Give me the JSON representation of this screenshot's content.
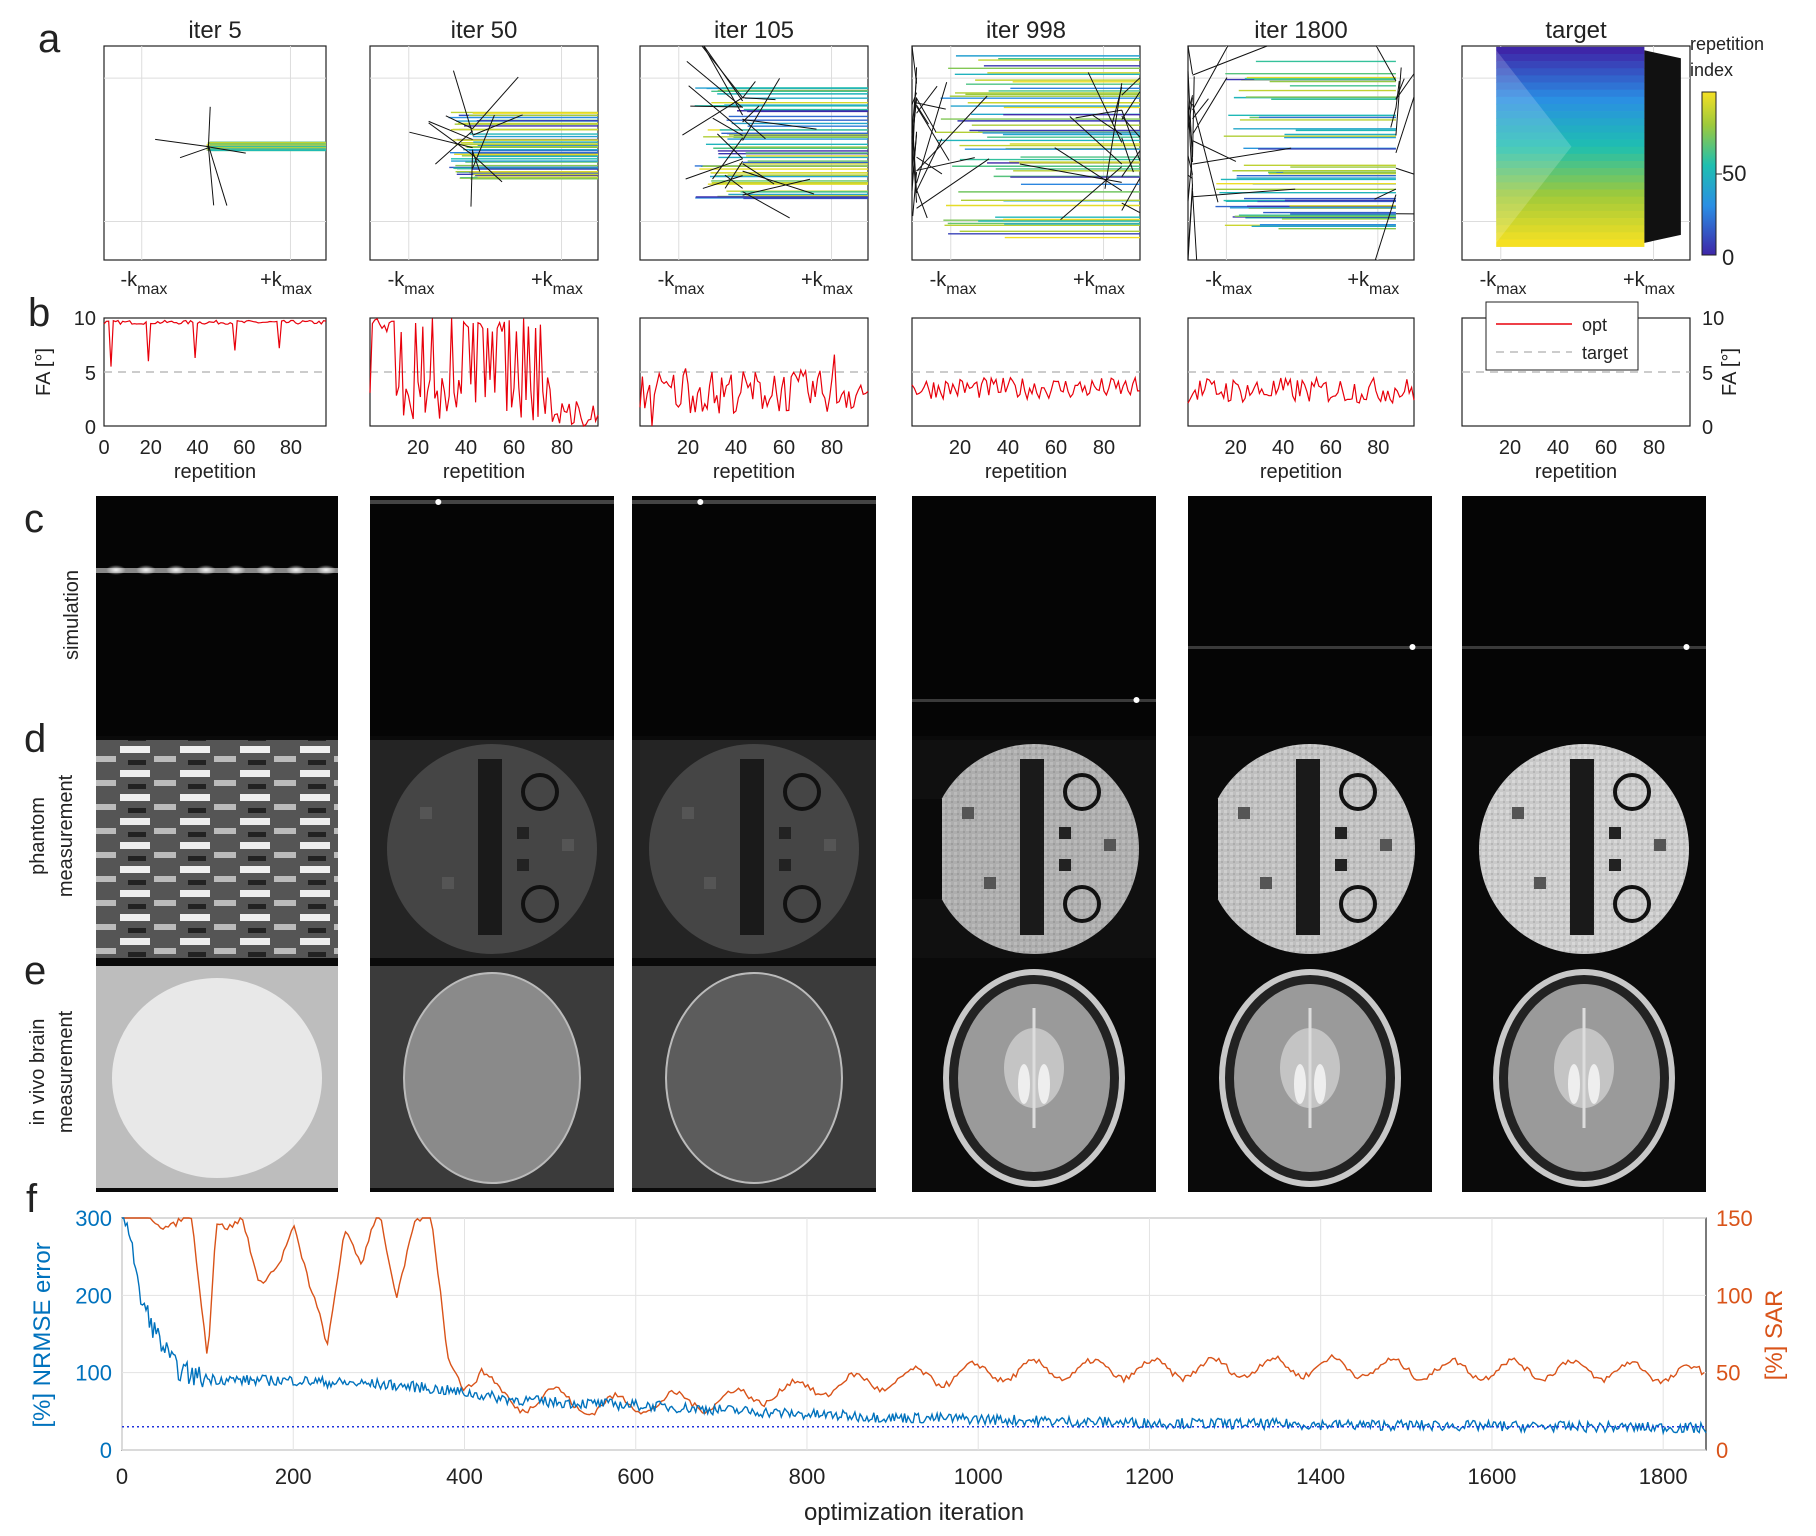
{
  "panel_letters": [
    "a",
    "b",
    "c",
    "d",
    "e",
    "f"
  ],
  "row_labels": {
    "simulation": "simulation",
    "phantom_1": "phantom",
    "phantom_2": "measurement",
    "brain_1": "in vivo brain",
    "brain_2": "measurement"
  },
  "columns": [
    {
      "title": "iter 5",
      "kspace_extent": [
        0.44,
        1.0
      ],
      "spread": 0.04,
      "spikes": 0.15
    },
    {
      "title": "iter 50",
      "kspace_extent": [
        0.28,
        1.0
      ],
      "spread": 0.32,
      "spikes": 0.3
    },
    {
      "title": "iter 105",
      "kspace_extent": [
        0.18,
        1.0
      ],
      "spread": 0.55,
      "spikes": 0.6
    },
    {
      "title": "iter 998",
      "kspace_extent": [
        0.0,
        1.0
      ],
      "spread": 0.85,
      "spikes": 1.0
    },
    {
      "title": "iter 1800",
      "kspace_extent": [
        0.0,
        0.92
      ],
      "spread": 0.8,
      "spikes": 0.8
    },
    {
      "title": "target",
      "kspace_extent": [
        0.0,
        1.0
      ],
      "spread": 0.9,
      "spikes": 0.0
    }
  ],
  "kspace_axis": {
    "neg_label": "-k",
    "pos_label": "+k",
    "sub": "max"
  },
  "colorbar": {
    "title_line1": "repetition",
    "title_line2": "index",
    "ticks": [
      "50",
      "0"
    ],
    "range": [
      0,
      90
    ],
    "colors": [
      "#3e26a8",
      "#2a8ee4",
      "#1ebfb0",
      "#9ec93b",
      "#f5e023"
    ]
  },
  "fa_axes": {
    "ylabel": "FA [°]",
    "xlabel": "repetition",
    "yticks": [
      "10",
      "5",
      "0"
    ],
    "xticks_first": [
      "0",
      "20",
      "40",
      "60",
      "80"
    ],
    "xticks_other": [
      "20",
      "40",
      "60",
      "80"
    ],
    "legend": {
      "opt": "opt",
      "target": "target"
    }
  },
  "chart_data": [
    {
      "type": "line",
      "title": "",
      "xlabel": "repetition",
      "ylabel": "FA [°]",
      "xlim": [
        0,
        95
      ],
      "ylim": [
        0,
        10
      ],
      "panels": [
        {
          "iteration": "iter 5",
          "mean": 9.6,
          "amp": 0.6,
          "dips": [
            [
              3,
              5.5
            ],
            [
              19,
              6.0
            ],
            [
              39,
              6.3
            ],
            [
              56,
              7.0
            ],
            [
              75,
              7.2
            ]
          ]
        },
        {
          "iteration": "iter 50",
          "mean": 5.5,
          "amp": 5.5,
          "dips": []
        },
        {
          "iteration": "iter 105",
          "mean": 3.2,
          "amp": 2.0,
          "dips": []
        },
        {
          "iteration": "iter 998",
          "mean": 3.5,
          "amp": 1.0,
          "dips": []
        },
        {
          "iteration": "iter 1800",
          "mean": 3.3,
          "amp": 1.2,
          "dips": []
        },
        {
          "iteration": "target",
          "mean": null,
          "amp": 0,
          "dips": []
        }
      ],
      "target_fa": 5,
      "series": [
        {
          "name": "opt",
          "color": "#e8000b"
        },
        {
          "name": "target",
          "color": "#bbbbbb"
        }
      ]
    },
    {
      "type": "line",
      "title": "",
      "xlabel": "optimization iteration",
      "ylabel": "[%] NRMSE error",
      "ylabel_right": "[%] SAR",
      "xlim": [
        0,
        1850
      ],
      "ylim": [
        0,
        300
      ],
      "ylim_right": [
        0,
        150
      ],
      "xticks": [
        0,
        200,
        400,
        600,
        800,
        1000,
        1200,
        1400,
        1600,
        1800
      ],
      "yticks": [
        0,
        100,
        200,
        300
      ],
      "yticks_right": [
        0,
        50,
        100,
        150
      ],
      "grid": true,
      "series": [
        {
          "name": "[%] NRMSE error",
          "color": "#0072bd",
          "x": [
            0,
            5,
            10,
            20,
            30,
            40,
            50,
            60,
            70,
            80,
            100,
            150,
            200,
            250,
            300,
            350,
            400,
            450,
            500,
            600,
            700,
            800,
            900,
            1000,
            1100,
            1200,
            1300,
            1400,
            1500,
            1600,
            1700,
            1800,
            1850
          ],
          "values": [
            300,
            300,
            280,
            200,
            175,
            150,
            130,
            110,
            102,
            97,
            92,
            90,
            90,
            87,
            85,
            81,
            74,
            66,
            62,
            58,
            52,
            46,
            42,
            40,
            37,
            35,
            34,
            33,
            32,
            31,
            30,
            29,
            28
          ]
        },
        {
          "name": "[%] SAR",
          "color": "#d95319",
          "axis": "right",
          "x": [
            0,
            5,
            20,
            50,
            80,
            100,
            110,
            120,
            140,
            160,
            180,
            200,
            220,
            240,
            260,
            280,
            300,
            320,
            340,
            360,
            380,
            400,
            420,
            440,
            460,
            500,
            550,
            600,
            700,
            800,
            900,
            1000,
            1100,
            1200,
            1300,
            1400,
            1500,
            1600,
            1700,
            1800,
            1850
          ],
          "values": [
            150,
            150,
            150,
            150,
            150,
            55,
            150,
            150,
            150,
            100,
            120,
            150,
            100,
            65,
            150,
            120,
            150,
            100,
            150,
            150,
            60,
            45,
            50,
            35,
            30,
            35,
            28,
            30,
            32,
            40,
            45,
            50,
            52,
            52,
            53,
            54,
            52,
            52,
            52,
            50,
            48
          ]
        },
        {
          "name": "",
          "color": "#2233dd",
          "style": "dotted",
          "x": [
            0,
            1850
          ],
          "values": [
            30,
            30
          ]
        }
      ]
    }
  ]
}
